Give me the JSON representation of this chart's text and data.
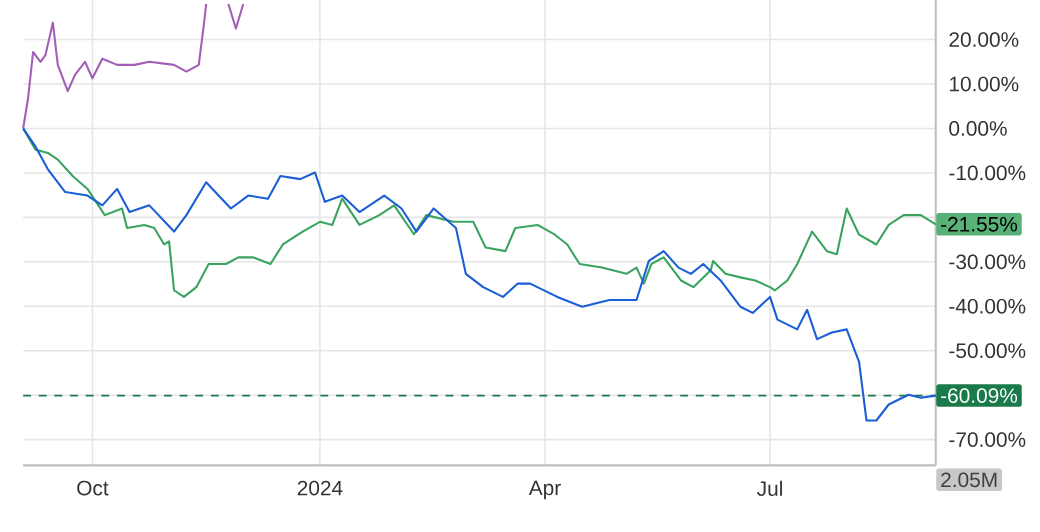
{
  "chart_data": {
    "type": "line",
    "xlim": [
      "2023-09-03",
      "2024-09-06"
    ],
    "xticks": [
      {
        "value": "2023-10-01",
        "label": "Oct"
      },
      {
        "value": "2024-01-01",
        "label": "2024"
      },
      {
        "value": "2024-04-01",
        "label": "Apr"
      },
      {
        "value": "2024-07-01",
        "label": "Jul"
      }
    ],
    "ylim": [
      -75.8,
      28.9
    ],
    "yticks": [
      {
        "value": -70,
        "label": "-70.00%"
      },
      {
        "value": -60,
        "label": null
      },
      {
        "value": -50,
        "label": "-50.00%"
      },
      {
        "value": -40,
        "label": "-40.00%"
      },
      {
        "value": -30,
        "label": "-30.00%"
      },
      {
        "value": -20,
        "label": null
      },
      {
        "value": -10,
        "label": "-10.00%"
      },
      {
        "value": 0,
        "label": "0.00%"
      },
      {
        "value": 10,
        "label": "10.00%"
      },
      {
        "value": 20,
        "label": "20.00%"
      }
    ],
    "grid": true,
    "series": [
      {
        "color": "#a35fb5",
        "x": [
          "2023-09-03",
          "2023-09-05",
          "2023-09-07",
          "2023-09-10",
          "2023-09-12",
          "2023-09-15",
          "2023-09-17",
          "2023-09-21",
          "2023-09-24",
          "2023-09-28",
          "2023-10-01",
          "2023-10-05",
          "2023-10-11",
          "2023-10-18",
          "2023-10-24",
          "2023-11-03",
          "2023-11-08",
          "2023-11-13",
          "2023-11-15",
          "2023-11-16",
          "2023-11-22",
          "2023-11-25",
          "2023-11-28",
          "2023-12-01"
        ],
        "values": [
          0,
          6.9,
          17.2,
          15.0,
          16.5,
          23.8,
          14.3,
          8.4,
          12.1,
          15.0,
          11.3,
          15.7,
          14.3,
          14.3,
          15.0,
          14.3,
          12.8,
          14.3,
          23.1,
          28.0,
          null,
          28.0,
          22.5,
          28.0
        ]
      },
      {
        "color": "#3aa35f",
        "x": [
          "2023-09-03",
          "2023-09-08",
          "2023-09-13",
          "2023-09-17",
          "2023-09-23",
          "2023-09-29",
          "2023-10-06",
          "2023-10-13",
          "2023-10-15",
          "2023-10-22",
          "2023-10-26",
          "2023-10-30",
          "2023-11-01",
          "2023-11-03",
          "2023-11-07",
          "2023-11-12",
          "2023-11-17",
          "2023-11-24",
          "2023-11-29",
          "2023-12-05",
          "2023-12-12",
          "2023-12-17",
          "2023-12-25",
          "2024-01-01",
          "2024-01-06",
          "2024-01-10",
          "2024-01-17",
          "2024-01-25",
          "2024-01-31",
          "2024-02-08",
          "2024-02-13",
          "2024-02-24",
          "2024-03-03",
          "2024-03-08",
          "2024-03-16",
          "2024-03-20",
          "2024-03-29",
          "2024-04-05",
          "2024-04-10",
          "2024-04-15",
          "2024-04-24",
          "2024-05-04",
          "2024-05-08",
          "2024-05-11",
          "2024-05-14",
          "2024-05-19",
          "2024-05-26",
          "2024-05-31",
          "2024-06-07",
          "2024-06-08",
          "2024-06-13",
          "2024-06-19",
          "2024-06-25",
          "2024-07-01",
          "2024-07-03",
          "2024-07-08",
          "2024-07-12",
          "2024-07-18",
          "2024-07-24",
          "2024-07-28",
          "2024-08-01",
          "2024-08-06",
          "2024-08-13",
          "2024-08-18",
          "2024-08-24",
          "2024-08-31",
          "2024-09-06"
        ],
        "values": [
          0,
          -4.8,
          -5.5,
          -7.0,
          -10.7,
          -13.6,
          -19.5,
          -18.0,
          -22.4,
          -21.7,
          -22.4,
          -26.1,
          -25.4,
          -36.4,
          -37.9,
          -35.7,
          -30.5,
          -30.5,
          -29.0,
          -29.0,
          -30.5,
          -26.1,
          -23.2,
          -21.0,
          -21.7,
          -15.8,
          -21.7,
          -19.5,
          -17.3,
          -23.8,
          -19.5,
          -21.0,
          -21.0,
          -26.8,
          -27.6,
          -22.4,
          -21.7,
          -23.9,
          -26.1,
          -30.5,
          -31.3,
          -32.7,
          -31.3,
          -34.9,
          -30.5,
          -29.0,
          -34.2,
          -35.7,
          -31.9,
          -29.8,
          -32.7,
          -33.5,
          -34.2,
          -35.7,
          -36.4,
          -34.2,
          -30.5,
          -23.2,
          -27.6,
          -28.3,
          -18.0,
          -23.9,
          -26.1,
          -21.7,
          -19.5,
          -19.5,
          -21.6
        ]
      },
      {
        "color": "#1a5fd6",
        "x": [
          "2023-09-03",
          "2023-09-08",
          "2023-09-13",
          "2023-09-20",
          "2023-09-29",
          "2023-10-05",
          "2023-10-11",
          "2023-10-16",
          "2023-10-24",
          "2023-11-03",
          "2023-11-08",
          "2023-11-16",
          "2023-11-21",
          "2023-11-26",
          "2023-12-03",
          "2023-12-11",
          "2023-12-16",
          "2023-12-24",
          "2023-12-30",
          "2024-01-03",
          "2024-01-10",
          "2024-01-17",
          "2024-01-27",
          "2024-02-03",
          "2024-02-09",
          "2024-02-16",
          "2024-02-25",
          "2024-02-29",
          "2024-03-07",
          "2024-03-15",
          "2024-03-21",
          "2024-03-26",
          "2024-04-06",
          "2024-04-16",
          "2024-04-27",
          "2024-05-08",
          "2024-05-13",
          "2024-05-19",
          "2024-05-25",
          "2024-05-30",
          "2024-06-04",
          "2024-06-11",
          "2024-06-19",
          "2024-06-24",
          "2024-07-01",
          "2024-07-04",
          "2024-07-12",
          "2024-07-16",
          "2024-07-20",
          "2024-07-26",
          "2024-08-01",
          "2024-08-06",
          "2024-08-09",
          "2024-08-13",
          "2024-08-18",
          "2024-08-26",
          "2024-08-31",
          "2024-09-06"
        ],
        "values": [
          0,
          -4.1,
          -9.2,
          -14.3,
          -15.1,
          -17.3,
          -13.6,
          -18.8,
          -17.3,
          -23.2,
          -19.5,
          -12.1,
          -15.1,
          -18.0,
          -15.1,
          -15.8,
          -10.7,
          -11.4,
          -9.9,
          -16.5,
          -15.1,
          -18.8,
          -15.1,
          -18.0,
          -23.2,
          -18.0,
          -22.4,
          -32.7,
          -35.7,
          -37.9,
          -34.9,
          -34.9,
          -37.9,
          -40.1,
          -38.6,
          -38.6,
          -29.8,
          -27.6,
          -31.3,
          -32.7,
          -30.5,
          -34.2,
          -40.1,
          -41.5,
          -37.9,
          -43.0,
          -45.2,
          -40.8,
          -47.4,
          -45.9,
          -45.2,
          -52.5,
          -65.7,
          -65.7,
          -62.1,
          -59.9,
          -60.6,
          -60.1
        ]
      }
    ],
    "ref_lines": [
      {
        "axis": "y",
        "value": -60.09,
        "label": "-60.09%",
        "color": "#1a7a4a",
        "line_style": "dashed"
      }
    ],
    "annotations": [
      {
        "text": "-21.55%",
        "x": "2024-09-06",
        "y": -21.55
      },
      "2.05M"
    ]
  }
}
